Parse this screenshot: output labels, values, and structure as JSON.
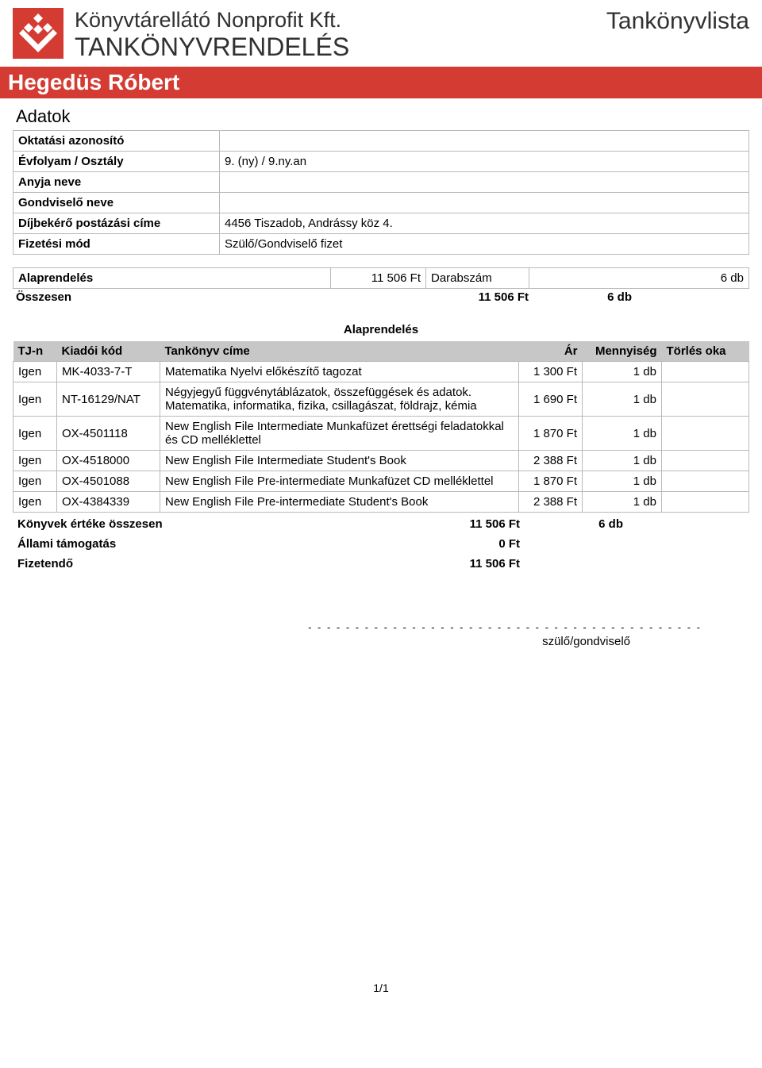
{
  "colors": {
    "brand_red": "#d43c33",
    "header_gray": "#c7c7c7",
    "border": "#b9b9b9",
    "text_dark": "#313131"
  },
  "header": {
    "company_name": "Könyvtárellátó Nonprofit Kft.",
    "system_name": "TANKÖNYVRENDELÉS",
    "doc_title": "Tankönyvlista",
    "person_name": "Hegedüs Róbert"
  },
  "info": {
    "section_title": "Adatok",
    "rows": [
      {
        "label": "Oktatási azonosító",
        "value": ""
      },
      {
        "label": "Évfolyam / Osztály",
        "value": "9. (ny) / 9.ny.an"
      },
      {
        "label": "Anyja neve",
        "value": ""
      },
      {
        "label": "Gondviselő neve",
        "value": ""
      },
      {
        "label": "Díjbekérő postázási címe",
        "value": "4456 Tiszadob, Andrássy köz 4."
      },
      {
        "label": "Fizetési mód",
        "value": "Szülő/Gondviselő fizet"
      }
    ]
  },
  "order_summary": {
    "label": "Alaprendelés",
    "amount": "11 506 Ft",
    "qty_label": "Darabszám",
    "qty_value": "6 db",
    "total_label": "Összesen",
    "total_amount": "11 506 Ft",
    "total_qty": "6 db"
  },
  "order": {
    "heading": "Alaprendelés",
    "columns": {
      "tjn": "TJ-n",
      "code": "Kiadói kód",
      "title": "Tankönyv címe",
      "price": "Ár",
      "qty": "Mennyiség",
      "delete": "Törlés oka"
    },
    "rows": [
      {
        "tjn": "Igen",
        "code": "MK-4033-7-T",
        "title": "Matematika Nyelvi előkészítő tagozat",
        "price": "1 300 Ft",
        "qty": "1 db",
        "delete": ""
      },
      {
        "tjn": "Igen",
        "code": "NT-16129/NAT",
        "title": "Négyjegyű függvénytáblázatok, összefüggések és adatok. Matematika, informatika, fizika, csillagászat, földrajz, kémia",
        "price": "1 690 Ft",
        "qty": "1 db",
        "delete": ""
      },
      {
        "tjn": "Igen",
        "code": "OX-4501118",
        "title": "New English File Intermediate Munkafüzet érettségi feladatokkal és CD melléklettel",
        "price": "1 870 Ft",
        "qty": "1 db",
        "delete": ""
      },
      {
        "tjn": "Igen",
        "code": "OX-4518000",
        "title": "New English File Intermediate Student's Book",
        "price": "2 388 Ft",
        "qty": "1 db",
        "delete": ""
      },
      {
        "tjn": "Igen",
        "code": "OX-4501088",
        "title": "New English File Pre-intermediate Munkafüzet CD melléklettel",
        "price": "1 870 Ft",
        "qty": "1 db",
        "delete": ""
      },
      {
        "tjn": "Igen",
        "code": "OX-4384339",
        "title": "New English File Pre-intermediate Student's Book",
        "price": "2 388 Ft",
        "qty": "1 db",
        "delete": ""
      }
    ],
    "subtotal": {
      "label": "Könyvek értéke összesen",
      "amount": "11 506 Ft",
      "qty": "6 db"
    },
    "support": {
      "label": "Állami támogatás",
      "amount": "0 Ft"
    },
    "payable": {
      "label": "Fizetendő",
      "amount": "11 506 Ft"
    }
  },
  "signature": {
    "dashes": "- - - - - - - - - - - - - - - - - - - - - - - - - - - - - - - - - - - - - - - - - -",
    "label": "szülő/gondviselő"
  },
  "page_number": "1/1"
}
